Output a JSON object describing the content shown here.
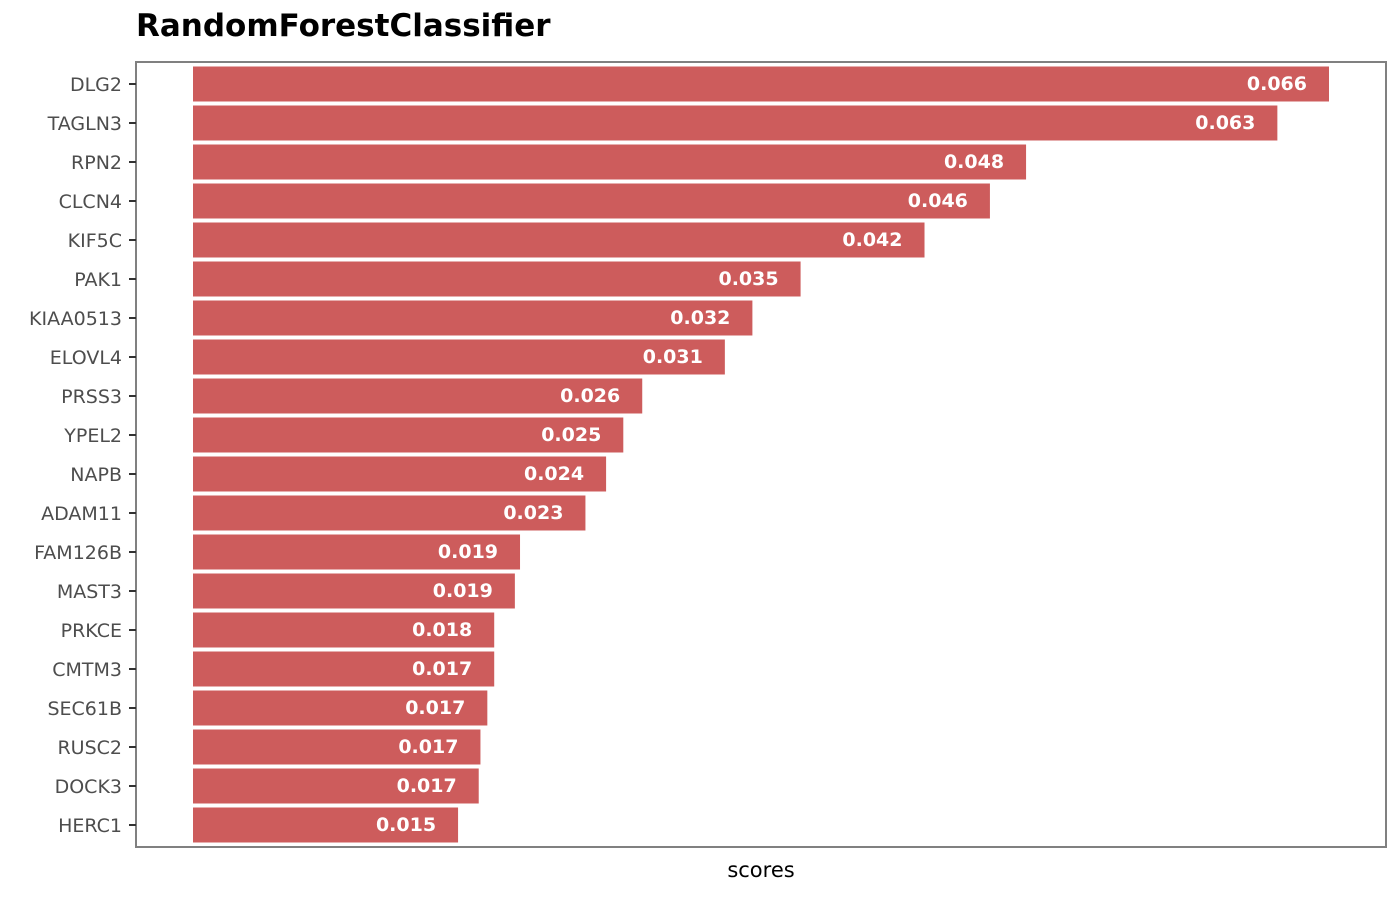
{
  "chart_data": {
    "type": "bar",
    "orientation": "horizontal",
    "title": "RandomForestClassifier",
    "xlabel": "scores",
    "ylabel": "",
    "grid": false,
    "bar_color": "#cd5c5c",
    "label_color": "#ffffff",
    "frame_color": "#808080",
    "xlim": [
      0,
      0.066
    ],
    "categories": [
      "DLG2",
      "TAGLN3",
      "RPN2",
      "CLCN4",
      "KIF5C",
      "PAK1",
      "KIAA0513",
      "ELOVL4",
      "PRSS3",
      "YPEL2",
      "NAPB",
      "ADAM11",
      "FAM126B",
      "MAST3",
      "PRKCE",
      "CMTM3",
      "SEC61B",
      "RUSC2",
      "DOCK3",
      "HERC1"
    ],
    "values": [
      0.066,
      0.063,
      0.0484,
      0.0463,
      0.0425,
      0.0353,
      0.0325,
      0.0309,
      0.0261,
      0.025,
      0.024,
      0.0228,
      0.019,
      0.0187,
      0.0175,
      0.0175,
      0.0171,
      0.0167,
      0.0166,
      0.0154
    ],
    "value_labels": [
      "0.066",
      "0.063",
      "0.048",
      "0.046",
      "0.042",
      "0.035",
      "0.032",
      "0.031",
      "0.026",
      "0.025",
      "0.024",
      "0.023",
      "0.019",
      "0.019",
      "0.018",
      "0.017",
      "0.017",
      "0.017",
      "0.017",
      "0.015"
    ]
  }
}
